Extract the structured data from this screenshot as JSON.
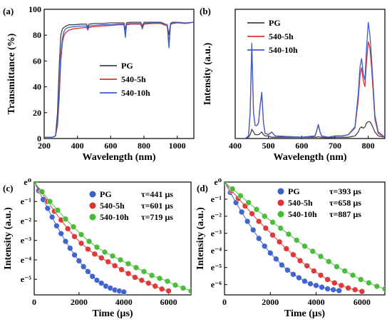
{
  "chart_data": [
    {
      "panel": "(a)",
      "type": "line",
      "xlabel": "Wavelength (nm)",
      "ylabel": "Transmittance (%)",
      "xlim": [
        200,
        1100
      ],
      "ylim": [
        0,
        100
      ],
      "xticks": [
        200,
        400,
        600,
        800,
        1000
      ],
      "xtick_labels": [
        "200",
        "400",
        "600",
        "800",
        "1000"
      ],
      "yticks": [
        0,
        20,
        40,
        60,
        80,
        100
      ],
      "ytick_labels": [
        "0",
        "20",
        "40",
        "60",
        "80",
        "100"
      ],
      "legend": "right",
      "series": [
        {
          "name": "PG",
          "color": "#444444",
          "x": [
            200,
            250,
            268,
            280,
            290,
            300,
            310,
            320,
            330,
            340,
            350,
            380,
            420,
            455,
            462,
            470,
            500,
            550,
            600,
            650,
            680,
            688,
            695,
            720,
            760,
            780,
            790,
            800,
            850,
            900,
            940,
            950,
            960,
            970,
            980,
            1000,
            1050,
            1100
          ],
          "y": [
            1,
            1,
            2,
            20,
            55,
            80,
            85,
            86,
            87,
            87.5,
            88,
            88,
            88.5,
            88.5,
            86,
            88.5,
            89,
            89,
            89.5,
            89.5,
            89.5,
            84,
            89.5,
            90,
            90,
            90,
            87,
            90,
            90,
            90,
            88,
            80,
            89,
            90,
            90,
            90,
            89,
            90
          ]
        },
        {
          "name": "540-5h",
          "color": "#dd3333",
          "x": [
            200,
            250,
            268,
            280,
            290,
            300,
            310,
            320,
            330,
            340,
            350,
            380,
            420,
            455,
            462,
            470,
            500,
            550,
            600,
            650,
            680,
            688,
            695,
            720,
            760,
            780,
            790,
            800,
            850,
            900,
            940,
            950,
            960,
            970,
            980,
            1000,
            1050,
            1100
          ],
          "y": [
            1,
            1,
            2,
            10,
            30,
            60,
            75,
            80,
            82,
            83,
            84,
            85,
            85.5,
            86,
            84,
            86,
            86.5,
            87,
            87.5,
            88,
            88,
            80,
            88,
            88.5,
            88.5,
            88.5,
            85,
            88.5,
            89,
            89,
            87,
            74,
            88,
            89,
            89,
            89.5,
            89,
            90
          ]
        },
        {
          "name": "540-10h",
          "color": "#3a5fcd",
          "x": [
            200,
            250,
            268,
            280,
            290,
            300,
            310,
            320,
            330,
            340,
            350,
            380,
            420,
            455,
            462,
            470,
            500,
            550,
            600,
            650,
            680,
            688,
            695,
            720,
            760,
            780,
            790,
            800,
            850,
            900,
            940,
            950,
            960,
            970,
            980,
            1000,
            1050,
            1100
          ],
          "y": [
            1,
            1,
            2,
            12,
            35,
            65,
            78,
            83,
            85,
            85.5,
            86,
            86.5,
            87,
            87,
            85,
            87,
            87.5,
            88,
            88,
            88.5,
            88.5,
            78,
            88.5,
            89,
            89,
            89,
            86,
            89,
            89.5,
            89.5,
            88,
            70,
            88.5,
            89.5,
            89.5,
            90,
            89.5,
            90
          ]
        }
      ]
    },
    {
      "panel": "(b)",
      "type": "line",
      "xlabel": "Wavelength (nm)",
      "ylabel": "Intensity (a.u.)",
      "xlim": [
        400,
        850
      ],
      "ylim": [
        0,
        1
      ],
      "xticks": [
        400,
        500,
        600,
        700,
        800
      ],
      "xtick_labels": [
        "400",
        "500",
        "600",
        "700",
        "800"
      ],
      "legend": "top-left",
      "series": [
        {
          "name": "PG",
          "color": "#444444",
          "x": [
            400,
            430,
            440,
            445,
            450,
            455,
            460,
            465,
            470,
            475,
            480,
            485,
            490,
            500,
            510,
            520,
            600,
            640,
            645,
            650,
            655,
            660,
            680,
            700,
            720,
            740,
            760,
            770,
            775,
            780,
            785,
            790,
            795,
            800,
            805,
            810,
            815,
            820,
            830,
            850
          ],
          "y": [
            0,
            0,
            0.01,
            0.03,
            0.07,
            0.05,
            0.03,
            0.03,
            0.03,
            0.04,
            0.05,
            0.03,
            0.02,
            0.02,
            0.01,
            0.01,
            0.01,
            0.01,
            0.01,
            0.015,
            0.01,
            0.01,
            0.005,
            0.01,
            0.01,
            0.01,
            0.02,
            0.05,
            0.08,
            0.09,
            0.08,
            0.09,
            0.12,
            0.13,
            0.13,
            0.11,
            0.08,
            0.05,
            0.02,
            0.01
          ]
        },
        {
          "name": "540-5h",
          "color": "#dd3333",
          "x": [
            400,
            430,
            440,
            445,
            450,
            455,
            460,
            465,
            470,
            475,
            480,
            485,
            490,
            500,
            510,
            520,
            600,
            640,
            645,
            650,
            655,
            660,
            680,
            700,
            720,
            740,
            760,
            770,
            775,
            780,
            785,
            790,
            795,
            800,
            805,
            810,
            815,
            820,
            830,
            850
          ],
          "y": [
            0,
            0,
            0.02,
            0.2,
            0.72,
            0.2,
            0.1,
            0.1,
            0.12,
            0.25,
            0.35,
            0.12,
            0.04,
            0.03,
            0.05,
            0.02,
            0.01,
            0.02,
            0.06,
            0.1,
            0.05,
            0.02,
            0.01,
            0.02,
            0.02,
            0.03,
            0.08,
            0.3,
            0.48,
            0.55,
            0.45,
            0.4,
            0.6,
            0.75,
            0.7,
            0.55,
            0.35,
            0.15,
            0.04,
            0.01
          ]
        },
        {
          "name": "540-10h",
          "color": "#3a5fcd",
          "x": [
            400,
            430,
            440,
            445,
            450,
            455,
            460,
            465,
            470,
            475,
            480,
            485,
            490,
            500,
            510,
            520,
            600,
            640,
            645,
            650,
            655,
            660,
            680,
            700,
            720,
            740,
            760,
            770,
            775,
            780,
            785,
            790,
            795,
            800,
            805,
            810,
            815,
            820,
            830,
            850
          ],
          "y": [
            0,
            0,
            0.02,
            0.2,
            0.74,
            0.2,
            0.1,
            0.1,
            0.12,
            0.26,
            0.36,
            0.12,
            0.04,
            0.03,
            0.05,
            0.02,
            0.01,
            0.02,
            0.06,
            0.11,
            0.05,
            0.02,
            0.01,
            0.02,
            0.02,
            0.03,
            0.09,
            0.35,
            0.55,
            0.62,
            0.5,
            0.45,
            0.7,
            0.9,
            0.8,
            0.62,
            0.4,
            0.18,
            0.05,
            0.01
          ]
        }
      ]
    },
    {
      "panel": "(c)",
      "type": "scatter",
      "xlabel": "Time (µs)",
      "ylabel": "Intensity (a.u.)",
      "xlim": [
        0,
        7000
      ],
      "ylim": [
        -5.8,
        0
      ],
      "xticks": [
        0,
        2000,
        4000,
        6000
      ],
      "xtick_labels": [
        "0",
        "2000",
        "4000",
        "6000"
      ],
      "yticks": [
        0,
        -1,
        -2,
        -3,
        -4,
        -5
      ],
      "ytick_labels": [
        "e⁰",
        "e⁻¹",
        "e⁻²",
        "e⁻³",
        "e⁻⁴",
        "e⁻⁵"
      ],
      "legend": "top-right",
      "series": [
        {
          "name": "PG",
          "tau_label": "τ=441 µs",
          "tau": 441,
          "color": "#3a5fcd",
          "x": [
            0,
            200,
            400,
            600,
            800,
            1000,
            1200,
            1400,
            1600,
            1800,
            2000,
            2200,
            2400,
            2600,
            2800,
            3000,
            3200,
            3400,
            3600,
            3800,
            4000
          ],
          "y": [
            0,
            -0.45,
            -0.9,
            -1.35,
            -1.8,
            -2.25,
            -2.65,
            -3.05,
            -3.4,
            -3.75,
            -4.05,
            -4.35,
            -4.6,
            -4.85,
            -5.05,
            -5.2,
            -5.35,
            -5.45,
            -5.55,
            -5.6,
            -5.65
          ]
        },
        {
          "name": "540-5h",
          "tau_label": "τ=601 µs",
          "tau": 601,
          "color": "#dd3333",
          "x": [
            0,
            300,
            600,
            900,
            1200,
            1500,
            1800,
            2100,
            2400,
            2700,
            3000,
            3300,
            3600,
            3900,
            4200,
            4500,
            4800,
            5100,
            5400,
            5700,
            6000
          ],
          "y": [
            0,
            -0.5,
            -1.0,
            -1.5,
            -1.95,
            -2.4,
            -2.8,
            -3.15,
            -3.45,
            -3.7,
            -3.9,
            -4.1,
            -4.3,
            -4.5,
            -4.7,
            -4.9,
            -5.05,
            -5.2,
            -5.35,
            -5.5,
            -5.6
          ]
        },
        {
          "name": "540-10h",
          "tau_label": "τ=719 µs",
          "tau": 719,
          "color": "#44bb33",
          "x": [
            0,
            350,
            700,
            1050,
            1400,
            1750,
            2100,
            2450,
            2800,
            3150,
            3500,
            3850,
            4200,
            4550,
            4900,
            5250,
            5600,
            5950,
            6300,
            6650,
            7000
          ],
          "y": [
            0,
            -0.5,
            -1.0,
            -1.45,
            -1.9,
            -2.3,
            -2.7,
            -3.05,
            -3.35,
            -3.6,
            -3.8,
            -4.0,
            -4.2,
            -4.4,
            -4.6,
            -4.8,
            -4.95,
            -5.1,
            -5.3,
            -5.45,
            -5.6
          ]
        }
      ]
    },
    {
      "panel": "(d)",
      "type": "scatter",
      "xlabel": "Time (µs)",
      "ylabel": "Intensity (a.u.)",
      "xlim": [
        0,
        7000
      ],
      "ylim": [
        -6.6,
        0
      ],
      "xticks": [
        0,
        2000,
        4000,
        6000
      ],
      "xtick_labels": [
        "0",
        "2000",
        "4000",
        "6000"
      ],
      "yticks": [
        0,
        -1,
        -2,
        -3,
        -4,
        -5,
        -6
      ],
      "ytick_labels": [
        "e⁰",
        "e⁻¹",
        "e⁻²",
        "e⁻³",
        "e⁻⁴",
        "e⁻⁵",
        "e⁻⁶"
      ],
      "legend": "top-right",
      "series": [
        {
          "name": "PG",
          "tau_label": "τ=393 µs",
          "tau": 393,
          "color": "#3a5fcd",
          "x": [
            0,
            250,
            500,
            750,
            1000,
            1250,
            1500,
            1750,
            2000,
            2250,
            2500,
            2750,
            3000,
            3250,
            3500,
            3750,
            4000,
            4250,
            4500,
            4750,
            5000
          ],
          "y": [
            0,
            -0.6,
            -1.2,
            -1.75,
            -2.3,
            -2.8,
            -3.3,
            -3.75,
            -4.15,
            -4.5,
            -4.85,
            -5.15,
            -5.4,
            -5.6,
            -5.8,
            -5.95,
            -6.05,
            -6.15,
            -6.25,
            -6.3,
            -6.35
          ]
        },
        {
          "name": "540-5h",
          "tau_label": "τ=658 µs",
          "tau": 658,
          "color": "#dd3333",
          "x": [
            0,
            300,
            600,
            900,
            1200,
            1500,
            1800,
            2100,
            2400,
            2700,
            3000,
            3300,
            3600,
            3900,
            4200,
            4500,
            4800,
            5100,
            5400,
            5700,
            6000
          ],
          "y": [
            0,
            -0.5,
            -0.95,
            -1.4,
            -1.85,
            -2.3,
            -2.7,
            -3.1,
            -3.5,
            -3.9,
            -4.25,
            -4.6,
            -4.9,
            -5.2,
            -5.45,
            -5.7,
            -5.9,
            -6.05,
            -6.2,
            -6.3,
            -6.4
          ]
        },
        {
          "name": "540-10h",
          "tau_label": "τ=887 µs",
          "tau": 887,
          "color": "#44bb33",
          "x": [
            0,
            350,
            700,
            1050,
            1400,
            1750,
            2100,
            2450,
            2800,
            3150,
            3500,
            3850,
            4200,
            4550,
            4900,
            5250,
            5600,
            5950,
            6300,
            6650,
            7000
          ],
          "y": [
            0,
            -0.4,
            -0.8,
            -1.2,
            -1.6,
            -2.0,
            -2.35,
            -2.7,
            -3.05,
            -3.4,
            -3.75,
            -4.05,
            -4.35,
            -4.65,
            -4.95,
            -5.2,
            -5.45,
            -5.7,
            -5.9,
            -6.1,
            -6.25
          ]
        }
      ]
    }
  ]
}
